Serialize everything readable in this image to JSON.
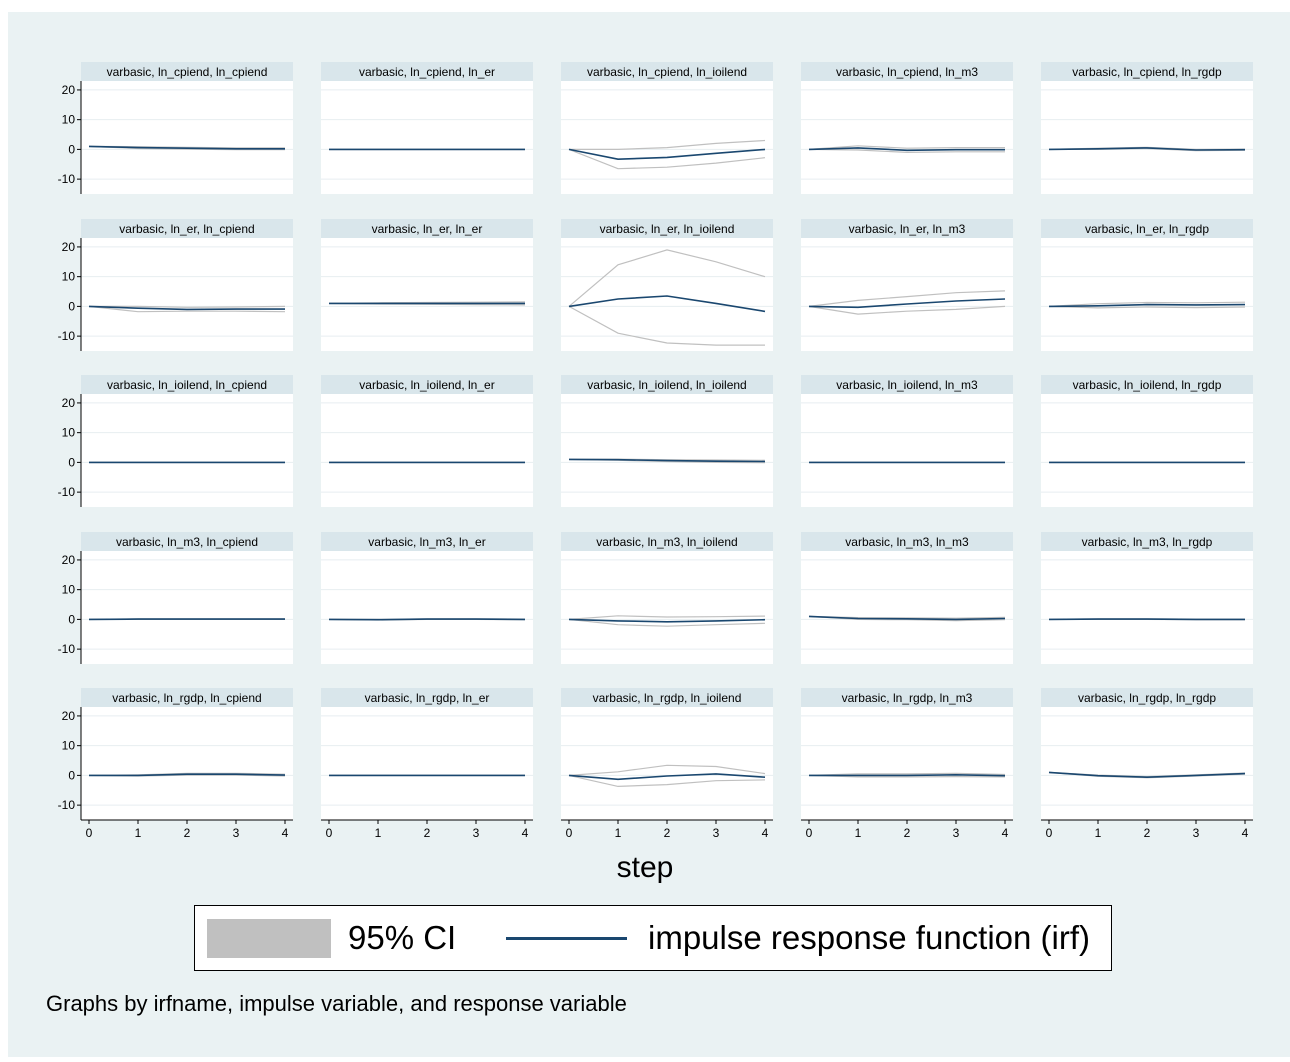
{
  "colors": {
    "outer_background": "#eaf2f3",
    "plot_background": "#ffffff",
    "strip_background": "#d9e6eb",
    "irf_line": "#1a476f",
    "ci": "#c0c0c0"
  },
  "legend": {
    "ci_label": "95% CI",
    "irf_label": "impulse response function (irf)"
  },
  "note": "Graphs by irfname, impulse variable, and response variable",
  "chart_data": {
    "type": "line",
    "xlabel": "step",
    "x": [
      0,
      1,
      2,
      3,
      4
    ],
    "ylim": [
      -15,
      23
    ],
    "yticks": [
      -10,
      0,
      10,
      20
    ],
    "xticks": [
      0,
      1,
      2,
      3,
      4
    ],
    "grid": true,
    "legend_position": "bottom",
    "series_names": [
      "95% CI",
      "impulse response function (irf)"
    ],
    "panels": [
      {
        "title": "varbasic, ln_cpiend, ln_cpiend",
        "irf": [
          1,
          0.6,
          0.4,
          0.2,
          0.2
        ],
        "lower": [
          1,
          0.3,
          0.1,
          -0.1,
          -0.1
        ],
        "upper": [
          1,
          0.9,
          0.7,
          0.5,
          0.5
        ]
      },
      {
        "title": "varbasic, ln_cpiend, ln_er",
        "irf": [
          0,
          0,
          0,
          0,
          0
        ],
        "lower": [
          0,
          0,
          0,
          0,
          0
        ],
        "upper": [
          0,
          0,
          0,
          0,
          0
        ]
      },
      {
        "title": "varbasic, ln_cpiend, ln_ioilend",
        "irf": [
          0,
          -3.3,
          -2.7,
          -1.3,
          0
        ],
        "lower": [
          0,
          -6.5,
          -6,
          -4.6,
          -2.8
        ],
        "upper": [
          0,
          0,
          0.6,
          2,
          3
        ]
      },
      {
        "title": "varbasic, ln_cpiend, ln_m3",
        "irf": [
          0,
          0.5,
          -0.3,
          -0.1,
          -0.1
        ],
        "lower": [
          0,
          -0.2,
          -1,
          -0.8,
          -0.8
        ],
        "upper": [
          0,
          1.2,
          0.4,
          0.6,
          0.6
        ]
      },
      {
        "title": "varbasic, ln_cpiend, ln_rgdp",
        "irf": [
          0,
          0.2,
          0.5,
          -0.2,
          -0.1
        ],
        "lower": [
          0,
          0,
          0.3,
          -0.4,
          -0.3
        ],
        "upper": [
          0,
          0.4,
          0.7,
          0,
          0.1
        ]
      },
      {
        "title": "varbasic, ln_er, ln_cpiend",
        "irf": [
          0,
          -0.6,
          -1,
          -0.9,
          -0.9
        ],
        "lower": [
          0,
          -1.8,
          -1.6,
          -1.6,
          -1.8
        ],
        "upper": [
          0,
          0,
          -0.3,
          -0.2,
          0
        ]
      },
      {
        "title": "varbasic, ln_er, ln_er",
        "irf": [
          1,
          1,
          1,
          1,
          1
        ],
        "lower": [
          1,
          0.8,
          0.7,
          0.6,
          0.5
        ],
        "upper": [
          1,
          1.2,
          1.3,
          1.4,
          1.5
        ]
      },
      {
        "title": "varbasic, ln_er, ln_ioilend",
        "irf": [
          0,
          2.5,
          3.5,
          1,
          -1.7
        ],
        "lower": [
          0,
          -9,
          -12.3,
          -13,
          -13
        ],
        "upper": [
          0,
          14,
          19,
          15,
          10
        ]
      },
      {
        "title": "varbasic, ln_er, ln_m3",
        "irf": [
          0,
          -0.3,
          0.8,
          1.8,
          2.5
        ],
        "lower": [
          0,
          -2.6,
          -1.6,
          -1,
          0
        ],
        "upper": [
          0,
          2,
          3.3,
          4.6,
          5.2
        ]
      },
      {
        "title": "varbasic, ln_er, ln_rgdp",
        "irf": [
          0,
          0.2,
          0.6,
          0.5,
          0.6
        ],
        "lower": [
          0,
          -0.5,
          -0.2,
          -0.4,
          -0.2
        ],
        "upper": [
          0,
          0.9,
          1.3,
          1.2,
          1.4
        ]
      },
      {
        "title": "varbasic, ln_ioilend, ln_cpiend",
        "irf": [
          0,
          0,
          0,
          0,
          0
        ],
        "lower": [
          0,
          0,
          0,
          0,
          0
        ],
        "upper": [
          0,
          0,
          0,
          0,
          0
        ]
      },
      {
        "title": "varbasic, ln_ioilend, ln_er",
        "irf": [
          0,
          0,
          0,
          0,
          0
        ],
        "lower": [
          0,
          0,
          0,
          0,
          0
        ],
        "upper": [
          0,
          0,
          0,
          0,
          0
        ]
      },
      {
        "title": "varbasic, ln_ioilend, ln_ioilend",
        "irf": [
          1,
          0.9,
          0.6,
          0.4,
          0.3
        ],
        "lower": [
          1,
          0.7,
          0.3,
          0,
          -0.1
        ],
        "upper": [
          1,
          1.1,
          0.9,
          0.8,
          0.7
        ]
      },
      {
        "title": "varbasic, ln_ioilend, ln_m3",
        "irf": [
          0,
          0,
          0,
          0,
          0
        ],
        "lower": [
          0,
          0,
          0,
          0,
          0
        ],
        "upper": [
          0,
          0,
          0,
          0,
          0
        ]
      },
      {
        "title": "varbasic, ln_ioilend, ln_rgdp",
        "irf": [
          0,
          0,
          0,
          0,
          0
        ],
        "lower": [
          0,
          0,
          0,
          0,
          0
        ],
        "upper": [
          0,
          0,
          0,
          0,
          0
        ]
      },
      {
        "title": "varbasic, ln_m3, ln_cpiend",
        "irf": [
          0,
          0.1,
          0.1,
          0.1,
          0.1
        ],
        "lower": [
          0,
          0,
          0,
          0,
          0
        ],
        "upper": [
          0,
          0.2,
          0.2,
          0.2,
          0.2
        ]
      },
      {
        "title": "varbasic, ln_m3, ln_er",
        "irf": [
          0,
          -0.1,
          0.1,
          0.1,
          0
        ],
        "lower": [
          0,
          -0.2,
          0,
          0,
          -0.1
        ],
        "upper": [
          0,
          0,
          0.2,
          0.2,
          0.1
        ]
      },
      {
        "title": "varbasic, ln_m3, ln_ioilend",
        "irf": [
          0,
          -0.5,
          -0.8,
          -0.5,
          -0.1
        ],
        "lower": [
          0,
          -1.8,
          -2.3,
          -1.8,
          -1.3
        ],
        "upper": [
          0,
          1.2,
          0.8,
          0.9,
          1.1
        ]
      },
      {
        "title": "varbasic, ln_m3, ln_m3",
        "irf": [
          1,
          0.3,
          0.2,
          0,
          0.3
        ],
        "lower": [
          1,
          0,
          -0.1,
          -0.4,
          -0.1
        ],
        "upper": [
          1,
          0.6,
          0.5,
          0.4,
          0.7
        ]
      },
      {
        "title": "varbasic, ln_m3, ln_rgdp",
        "irf": [
          0,
          0.1,
          0.1,
          0,
          0
        ],
        "lower": [
          0,
          0,
          0,
          -0.1,
          -0.1
        ],
        "upper": [
          0,
          0.2,
          0.2,
          0.1,
          0.1
        ]
      },
      {
        "title": "varbasic, ln_rgdp, ln_cpiend",
        "irf": [
          0,
          0,
          0.4,
          0.4,
          0.1
        ],
        "lower": [
          0,
          -0.2,
          0.1,
          0.1,
          -0.2
        ],
        "upper": [
          0,
          0.2,
          0.7,
          0.7,
          0.4
        ]
      },
      {
        "title": "varbasic, ln_rgdp, ln_er",
        "irf": [
          0,
          0,
          0,
          0,
          0
        ],
        "lower": [
          0,
          0,
          0,
          0,
          0
        ],
        "upper": [
          0,
          0,
          0,
          0,
          0
        ]
      },
      {
        "title": "varbasic, ln_rgdp, ln_ioilend",
        "irf": [
          0,
          -1.3,
          -0.2,
          0.5,
          -0.6
        ],
        "lower": [
          0,
          -3.7,
          -3.1,
          -1.8,
          -1.5
        ],
        "upper": [
          0,
          1.2,
          3.4,
          3,
          0.6
        ]
      },
      {
        "title": "varbasic, ln_rgdp, ln_m3",
        "irf": [
          0,
          0,
          0,
          0.2,
          -0.1
        ],
        "lower": [
          0,
          -0.5,
          -0.5,
          -0.4,
          -0.5
        ],
        "upper": [
          0,
          0.5,
          0.5,
          0.7,
          0.3
        ]
      },
      {
        "title": "varbasic, ln_rgdp, ln_rgdp",
        "irf": [
          1,
          -0.1,
          -0.6,
          0,
          0.6
        ],
        "lower": [
          1,
          -0.3,
          -0.8,
          -0.2,
          0.4
        ],
        "upper": [
          1,
          0.1,
          -0.4,
          0.2,
          0.8
        ]
      }
    ]
  }
}
